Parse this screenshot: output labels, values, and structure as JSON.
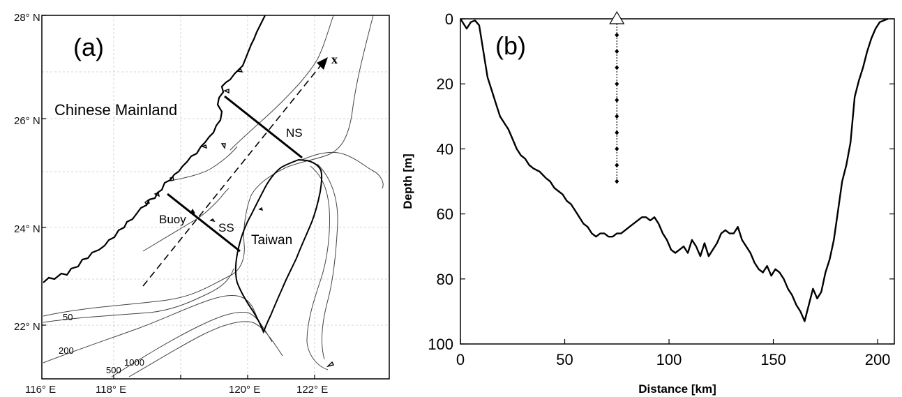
{
  "panel_a": {
    "label": "(a)",
    "lat_labels": [
      "28° N",
      "26° N",
      "24° N",
      "22° N"
    ],
    "lon_labels": [
      "116° E",
      "118° E",
      "120° E",
      "122° E"
    ],
    "place_labels": {
      "mainland": "Chinese Mainland",
      "taiwan": "Taiwan",
      "buoy": "Buoy",
      "ss": "SS",
      "ns": "NS",
      "x_axis": "x"
    },
    "contour_labels": [
      "50",
      "200",
      "500",
      "1000"
    ]
  },
  "panel_b": {
    "label": "(b)",
    "xlabel": "Distance [km]",
    "ylabel": "Depth [m]",
    "xticks": [
      0,
      50,
      100,
      150,
      200
    ],
    "yticks": [
      0,
      20,
      40,
      60,
      80,
      100
    ]
  },
  "chart_data": {
    "type": "line",
    "xlabel": "Distance [km]",
    "ylabel": "Depth [m]",
    "xlim": [
      0,
      208
    ],
    "ylim": [
      0,
      100
    ],
    "y_inverted": true,
    "grid": false,
    "series": [
      {
        "x": [
          0,
          3,
          5,
          7,
          9,
          11,
          13,
          15,
          17,
          19,
          21,
          23,
          25,
          27,
          29,
          31,
          33,
          35,
          38,
          41,
          43,
          45,
          47,
          49,
          51,
          53,
          55,
          57,
          59,
          61,
          63,
          65,
          67,
          69,
          71,
          73,
          75,
          77,
          79,
          81,
          83,
          85,
          87,
          89,
          91,
          93,
          95,
          97,
          99,
          101,
          103,
          105,
          107,
          109,
          111,
          113,
          115,
          117,
          119,
          121,
          123,
          125,
          127,
          129,
          131,
          133,
          135,
          137,
          139,
          141,
          143,
          145,
          147,
          149,
          151,
          153,
          155,
          157,
          159,
          161,
          163,
          165,
          167,
          169,
          171,
          173,
          175,
          177,
          179,
          181,
          183,
          185,
          187,
          189,
          191,
          193,
          195,
          197,
          199,
          201,
          203,
          205
        ],
        "y": [
          0,
          3,
          1,
          0.5,
          2,
          10,
          18,
          22,
          26,
          30,
          32,
          34,
          37,
          40,
          42,
          43,
          45,
          46,
          47,
          49,
          50,
          52,
          53,
          54,
          56,
          57,
          59,
          61,
          63,
          64,
          66,
          67,
          66,
          66,
          67,
          67,
          66,
          66,
          65,
          64,
          63,
          62,
          61,
          61,
          62,
          61,
          63,
          66,
          68,
          71,
          72,
          71,
          70,
          72,
          68,
          70,
          73,
          69,
          73,
          71,
          69,
          66,
          65,
          66,
          66,
          64,
          68,
          70,
          72,
          75,
          77,
          78,
          76,
          79,
          77,
          78,
          80,
          83,
          85,
          88,
          90,
          93,
          88,
          83,
          86,
          84,
          78,
          74,
          68,
          59,
          50,
          45,
          38,
          24,
          19,
          15,
          10,
          6,
          3,
          1,
          0.5,
          0
        ]
      }
    ],
    "markers": [
      {
        "x": 75,
        "y": 0,
        "type": "triangle"
      },
      {
        "x": 75,
        "ys": [
          5,
          10,
          15,
          20,
          25,
          30,
          35,
          40,
          45,
          50
        ]
      }
    ]
  }
}
